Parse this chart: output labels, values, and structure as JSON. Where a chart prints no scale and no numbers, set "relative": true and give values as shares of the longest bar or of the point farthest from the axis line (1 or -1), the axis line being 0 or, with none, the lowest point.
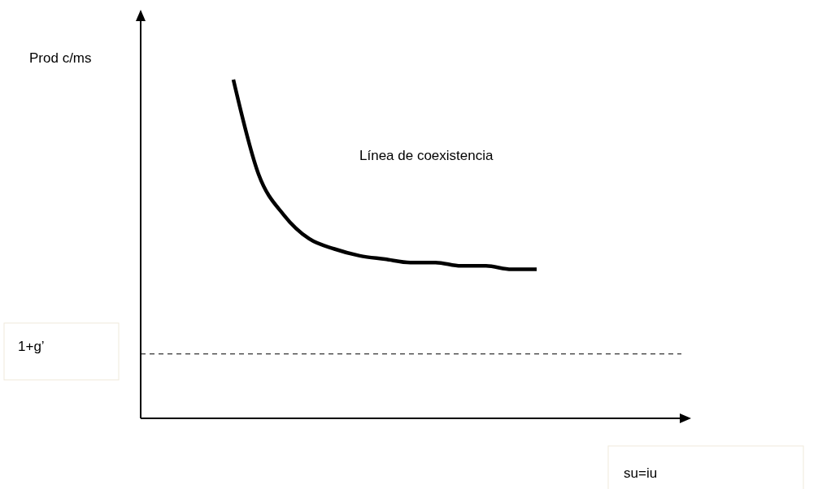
{
  "chart_data": {
    "type": "line",
    "relative": true,
    "categories": [
      null,
      null,
      null,
      null,
      null,
      null,
      null,
      null,
      null,
      null,
      null,
      null,
      null
    ],
    "series": [
      {
        "color": "#000000",
        "values": [
          1.0,
          0.72,
          0.6,
          0.53,
          0.5,
          0.48,
          0.47,
          0.46,
          0.46,
          0.45,
          0.45,
          0.44,
          0.44
        ]
      }
    ],
    "ref_lines": [
      {
        "axis": "y",
        "value": 0.19,
        "label": "1+g’",
        "color": "#000000",
        "line_style": "dashed"
      }
    ],
    "annotations": [
      "Línea de coexistencia",
      "Prod c/ms",
      "su=iu"
    ],
    "line_style": "solid",
    "marker": "none"
  }
}
